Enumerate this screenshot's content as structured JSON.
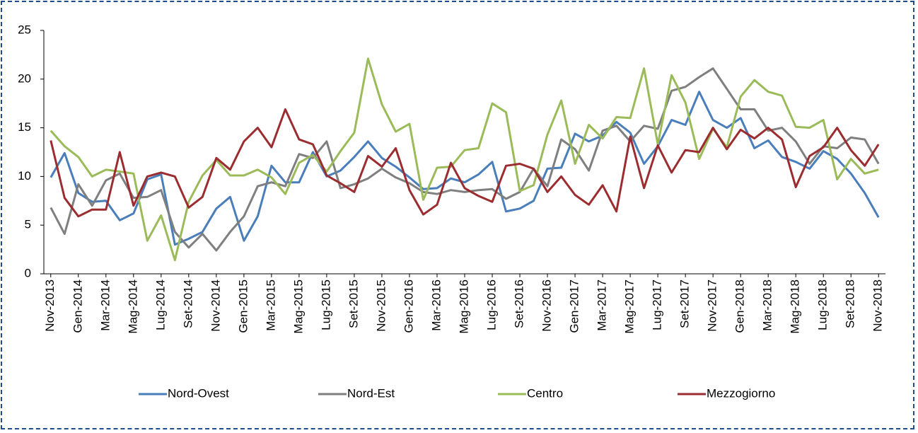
{
  "chart_data": {
    "type": "line",
    "categories": [
      "Nov-2013",
      null,
      "Gen-2014",
      null,
      "Mar-2014",
      null,
      "Mag-2014",
      null,
      "Lug-2014",
      null,
      "Set-2014",
      null,
      "Nov-2014",
      null,
      "Gen-2015",
      null,
      "Mar-2015",
      null,
      "Mag-2015",
      null,
      "Lug-2015",
      null,
      "Set-2015",
      null,
      "Nov-2015",
      null,
      "Gen-2016",
      null,
      "Mar-2016",
      null,
      "Mag-2016",
      null,
      "Lug-2016",
      null,
      "Set-2016",
      null,
      "Nov-2016",
      null,
      "Gen-2017",
      null,
      "Mar-2017",
      null,
      "Mag-2017",
      null,
      "Lug-2017",
      null,
      "Set-2017",
      null,
      "Nov-2017",
      null,
      "Gen-2018",
      null,
      "Mar-2018",
      null,
      "Mag-2018",
      null,
      "Lug-2018",
      null,
      "Set-2018",
      null,
      "Nov-2018"
    ],
    "series": [
      {
        "name": "Nord-Ovest",
        "color": "#4a7ebb",
        "values": [
          9.9,
          12.4,
          8.3,
          7.4,
          7.5,
          5.5,
          6.2,
          9.7,
          10.2,
          3.0,
          3.6,
          4.3,
          6.7,
          7.9,
          3.4,
          5.9,
          11.1,
          9.4,
          9.4,
          12.5,
          10.0,
          10.6,
          12.0,
          13.6,
          11.9,
          11.0,
          9.9,
          8.7,
          8.8,
          9.8,
          9.4,
          10.2,
          11.5,
          6.4,
          6.7,
          7.5,
          10.8,
          10.9,
          14.4,
          13.6,
          14.2,
          15.6,
          14.5,
          11.3,
          13.1,
          15.8,
          15.3,
          18.7,
          15.8,
          15.0,
          16.0,
          12.9,
          13.7,
          12.0,
          11.5,
          10.8,
          12.6,
          11.8,
          10.3,
          8.3,
          5.8
        ]
      },
      {
        "name": "Nord-Est",
        "color": "#7f7f7f",
        "values": [
          6.8,
          4.1,
          9.2,
          7.0,
          9.6,
          10.3,
          7.8,
          7.9,
          8.6,
          4.3,
          2.7,
          4.1,
          2.4,
          4.3,
          5.9,
          9.0,
          9.4,
          9.0,
          12.3,
          11.9,
          13.6,
          8.8,
          9.2,
          9.8,
          10.8,
          9.9,
          9.3,
          8.4,
          8.2,
          8.6,
          8.4,
          8.6,
          8.7,
          7.7,
          8.4,
          10.8,
          9.0,
          13.8,
          12.8,
          10.6,
          14.7,
          15.2,
          13.6,
          15.2,
          14.9,
          18.8,
          19.2,
          20.2,
          21.1,
          19.0,
          16.9,
          16.9,
          14.7,
          15.0,
          13.6,
          11.3,
          13.1,
          12.9,
          14.0,
          13.8,
          11.3
        ]
      },
      {
        "name": "Centro",
        "color": "#9bbb59",
        "values": [
          14.7,
          13.1,
          12.0,
          10.0,
          10.7,
          10.5,
          10.3,
          3.4,
          6.0,
          1.4,
          7.4,
          10.1,
          11.7,
          10.1,
          10.1,
          10.7,
          9.9,
          8.2,
          11.4,
          12.2,
          10.5,
          12.6,
          14.5,
          22.1,
          17.4,
          14.6,
          15.4,
          7.6,
          10.9,
          11.0,
          12.7,
          12.9,
          17.5,
          16.6,
          8.5,
          9.1,
          14.3,
          17.8,
          11.3,
          15.3,
          13.9,
          16.1,
          16.0,
          21.1,
          13.3,
          20.4,
          17.6,
          11.8,
          14.9,
          13.0,
          18.2,
          19.9,
          18.7,
          18.3,
          15.1,
          15.0,
          15.8,
          9.7,
          11.8,
          10.3,
          10.7
        ]
      },
      {
        "name": "Mezzogiorno",
        "color": "#9b2d30",
        "values": [
          13.7,
          7.8,
          5.9,
          6.6,
          6.6,
          12.5,
          7.0,
          10.0,
          10.4,
          10.0,
          6.8,
          7.9,
          11.9,
          10.7,
          13.6,
          15.0,
          13.0,
          16.9,
          13.8,
          13.3,
          10.1,
          9.3,
          8.4,
          12.1,
          11.0,
          12.9,
          8.6,
          6.1,
          7.1,
          11.4,
          8.8,
          8.0,
          7.4,
          11.1,
          11.3,
          10.8,
          8.4,
          10.0,
          8.1,
          7.1,
          9.1,
          6.4,
          14.1,
          8.8,
          13.2,
          10.4,
          12.7,
          12.5,
          15.0,
          12.8,
          14.8,
          13.9,
          15.0,
          13.8,
          8.9,
          12.1,
          13.0,
          15.0,
          12.7,
          11.1,
          13.3
        ]
      }
    ],
    "ylim": [
      0,
      25
    ],
    "yticks": [
      0,
      5,
      10,
      15,
      20,
      25
    ],
    "legend": "bottom"
  }
}
